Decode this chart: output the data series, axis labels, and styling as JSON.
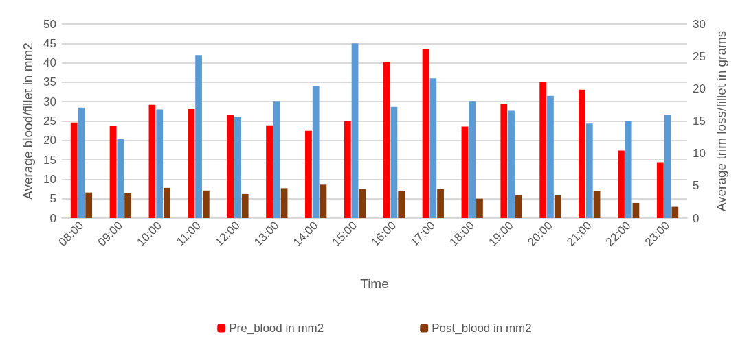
{
  "chart_data": {
    "type": "bar",
    "xlabel": "Time",
    "ylabel": "Average blood/fillet in mm2",
    "y2label": "Average trim loss/fillet in grams",
    "categories": [
      "08:00",
      "09:00",
      "10:00",
      "11:00",
      "12:00",
      "13:00",
      "14:00",
      "15:00",
      "16:00",
      "17:00",
      "18:00",
      "19:00",
      "20:00",
      "21:00",
      "22:00",
      "23:00"
    ],
    "series": [
      {
        "name": "Pre_blood in mm2",
        "color": "#ff0000",
        "values": [
          24.6,
          23.7,
          29.2,
          28.1,
          26.5,
          23.9,
          22.5,
          25,
          40.3,
          43.6,
          23.6,
          29.5,
          35,
          33.1,
          17.4,
          14.4
        ]
      },
      {
        "color": "#5b9bd5",
        "axis": "y2",
        "values": [
          17.1,
          12.2,
          16.8,
          25.2,
          15.6,
          18.1,
          20.4,
          27,
          17.2,
          21.6,
          18.1,
          16.6,
          18.9,
          14.6,
          15,
          16
        ]
      },
      {
        "name": "Post_blood in mm2",
        "color": "#843c0c",
        "values": [
          6.6,
          6.5,
          7.8,
          7.1,
          6.2,
          7.7,
          8.6,
          7.5,
          6.9,
          7.5,
          5,
          5.9,
          6,
          6.9,
          3.9,
          2.9
        ]
      }
    ],
    "ylim": [
      0,
      50
    ],
    "yticks": [
      0,
      5,
      10,
      15,
      20,
      25,
      30,
      35,
      40,
      45,
      50
    ],
    "y2lim": [
      0,
      30
    ],
    "y2ticks": [
      0,
      5,
      10,
      15,
      20,
      25,
      30
    ],
    "grid": "y",
    "legend": "bottom"
  }
}
